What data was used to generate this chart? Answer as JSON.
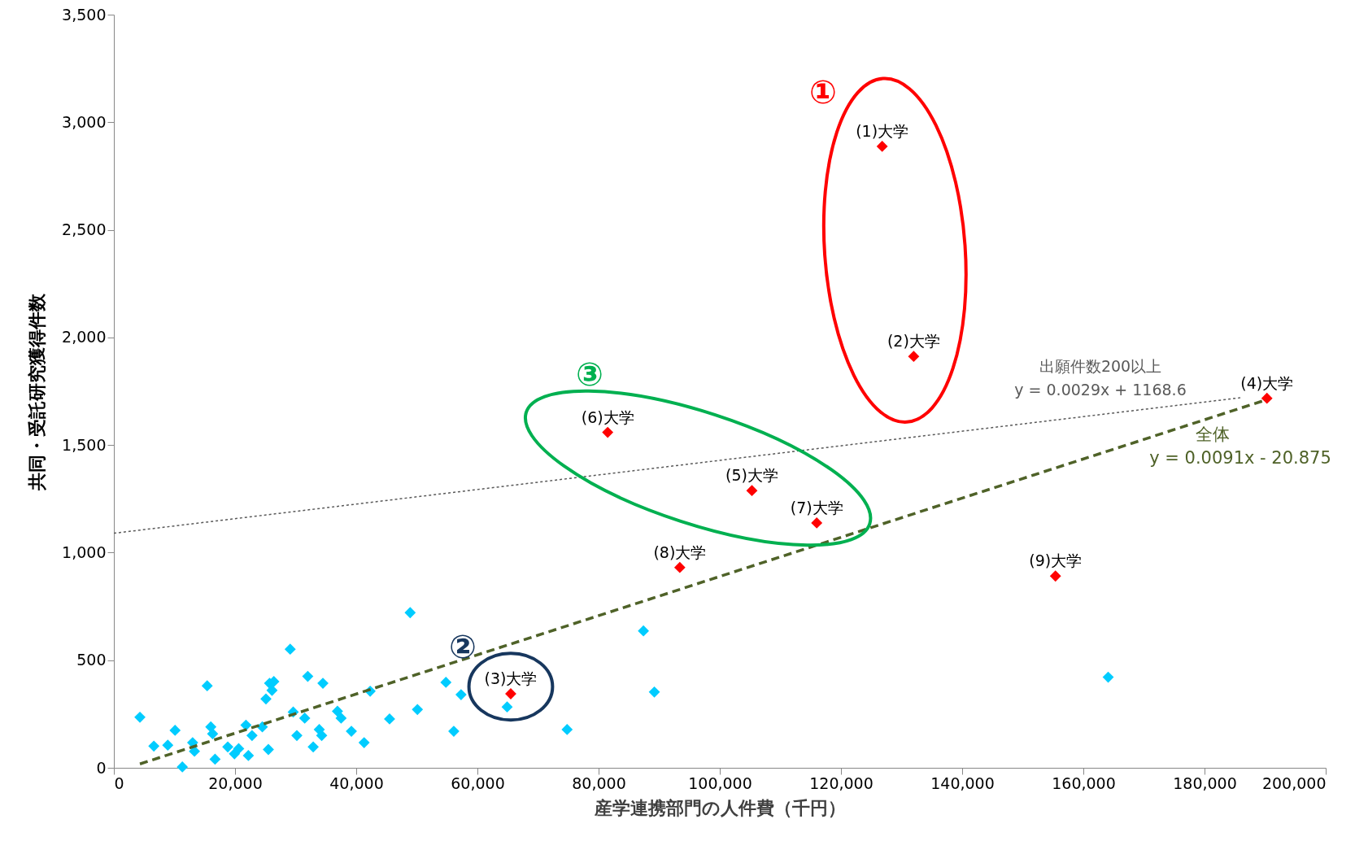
{
  "chart_data": {
    "type": "scatter",
    "xlabel": "産学連携部門の人件費（千円）",
    "ylabel": "共同・受託研究獲得件数",
    "xlim": [
      0,
      200000
    ],
    "xticks": [
      0,
      {
        "value": 20000,
        "label": "20,000"
      },
      {
        "value": 40000,
        "label": "40,000"
      },
      {
        "value": 60000,
        "label": "60,000"
      },
      {
        "value": 80000,
        "label": "80,000"
      },
      {
        "value": 100000,
        "label": "100,000"
      },
      {
        "value": 120000,
        "label": "120,000"
      },
      {
        "value": 140000,
        "label": "140,000"
      },
      {
        "value": 160000,
        "label": "160,000"
      },
      {
        "value": 180000,
        "label": "180,000"
      },
      {
        "value": 200000,
        "label": "200,000"
      }
    ],
    "ylim": [
      0,
      3500
    ],
    "yticks": [
      0,
      500,
      {
        "value": 1000,
        "label": "1,000"
      },
      {
        "value": 1500,
        "label": "1,500"
      },
      {
        "value": 2000,
        "label": "2,000"
      },
      {
        "value": 2500,
        "label": "2,500"
      },
      {
        "value": 3000,
        "label": "3,000"
      },
      {
        "value": 3500,
        "label": "3,500"
      }
    ],
    "grid": false,
    "series": [
      {
        "color": "#00ccff",
        "marker": "diamond",
        "x": [
          4300,
          6600,
          8900,
          10100,
          11300,
          13000,
          13300,
          15400,
          16000,
          16300,
          16700,
          18800,
          19900,
          20600,
          21800,
          22200,
          22800,
          24500,
          25100,
          25700,
          26100,
          26400,
          25500,
          29100,
          29600,
          30200,
          31500,
          32000,
          32900,
          33900,
          34300,
          34500,
          36900,
          37500,
          39200,
          41300,
          42300,
          45500,
          48900,
          50100,
          54800,
          56100,
          57300,
          64900,
          74800,
          87400,
          89200,
          164100
        ],
        "values": [
          235,
          101,
          105,
          174,
          4,
          117,
          77,
          381,
          190,
          158,
          40,
          97,
          65,
          89,
          198,
          57,
          150,
          190,
          320,
          393,
          360,
          401,
          85,
          551,
          259,
          150,
          231,
          425,
          97,
          178,
          150,
          393,
          263,
          231,
          170,
          117,
          356,
          227,
          721,
          271,
          397,
          170,
          340,
          283,
          178,
          636,
          352,
          421
        ]
      },
      {
        "color": "#ff0000",
        "marker": "diamond",
        "x": [
          126800,
          132000,
          65500,
          190300,
          105300,
          81500,
          116000,
          93400,
          155400
        ],
        "values": [
          2888,
          1912,
          344,
          1717,
          1288,
          1559,
          1138,
          931,
          891
        ]
      },
      {
        "type": "line",
        "color": "#595959",
        "line_style": "dotted",
        "x": [
          0,
          186000
        ],
        "values": [
          1090,
          1720
        ]
      },
      {
        "type": "line",
        "color": "#4f6228",
        "line_style": "dashed",
        "x": [
          4300,
          190300
        ],
        "values": [
          18,
          1711
        ]
      }
    ],
    "annotations": [
      "①",
      "②",
      "③",
      "出願件数200以上",
      "y = 0.0029x + 1168.6",
      "全体",
      "y = 0.0091x - 20.875",
      {
        "text": "(1)大学",
        "x": 126800,
        "y": 2888
      },
      {
        "text": "(2)大学",
        "x": 132000,
        "y": 1912
      },
      {
        "text": "(3)大学",
        "x": 65500,
        "y": 344
      },
      {
        "text": "(4)大学",
        "x": 190300,
        "y": 1717
      },
      {
        "text": "(5)大学",
        "x": 105300,
        "y": 1288
      },
      {
        "text": "(6)大学",
        "x": 81500,
        "y": 1559
      },
      {
        "text": "(7)大学",
        "x": 116000,
        "y": 1138
      },
      {
        "text": "(8)大学",
        "x": 93400,
        "y": 931
      },
      {
        "text": "(9)大学",
        "x": 155400,
        "y": 891
      }
    ]
  }
}
